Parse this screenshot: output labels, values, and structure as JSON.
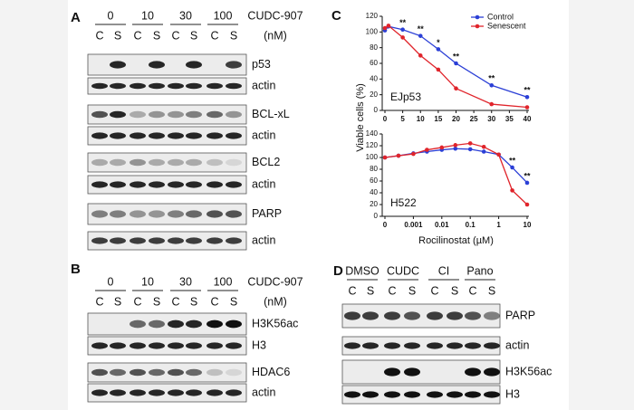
{
  "panels": {
    "A": {
      "label": "A",
      "treatment": "CUDC-907",
      "unit": "(nM)",
      "doses": [
        "0",
        "10",
        "30",
        "100"
      ],
      "lanes": [
        "C",
        "S",
        "C",
        "S",
        "C",
        "S",
        "C",
        "S"
      ],
      "blots": [
        "p53",
        "actin",
        "BCL-xL",
        "actin",
        "BCL2",
        "actin",
        "PARP",
        "actin"
      ]
    },
    "B": {
      "label": "B",
      "treatment": "CUDC-907",
      "unit": "(nM)",
      "doses": [
        "0",
        "10",
        "30",
        "100"
      ],
      "lanes": [
        "C",
        "S",
        "C",
        "S",
        "C",
        "S",
        "C",
        "S"
      ],
      "blots": [
        "H3K56ac",
        "H3",
        "HDAC6",
        "actin"
      ]
    },
    "C": {
      "label": "C"
    },
    "D": {
      "label": "D",
      "groups": [
        "DMSO",
        "CUDC",
        "CI",
        "Pano"
      ],
      "lanes": [
        "C",
        "S",
        "C",
        "S",
        "C",
        "S",
        "C",
        "S"
      ],
      "blots": [
        "PARP",
        "actin",
        "H3K56ac",
        "H3"
      ]
    }
  },
  "chart_data": [
    {
      "type": "line",
      "annotation": "EJp53",
      "y_label": "Viable cells (%)",
      "x": [
        0,
        1,
        5,
        10,
        15,
        20,
        30,
        40
      ],
      "series": [
        {
          "name": "Control",
          "color": "#2b3fd6",
          "values": [
            102,
            107,
            103,
            95,
            78,
            60,
            32,
            17
          ]
        },
        {
          "name": "Senescent",
          "color": "#e0242b",
          "values": [
            105,
            108,
            93,
            70,
            52,
            28,
            8,
            4
          ]
        }
      ],
      "xlim": [
        0,
        40
      ],
      "xticks": [
        0,
        5,
        10,
        15,
        20,
        25,
        30,
        35,
        40
      ],
      "ylim": [
        0,
        120
      ],
      "yticks": [
        0,
        20,
        40,
        60,
        80,
        100,
        120
      ],
      "legend": "upper right",
      "significance": {
        "x": [
          5,
          10,
          15,
          20,
          30,
          40
        ],
        "labels": [
          "**",
          "**",
          "*",
          "**",
          "**",
          "**"
        ]
      }
    },
    {
      "type": "line",
      "annotation": "H522",
      "x_label": "Rocilinostat (µM)",
      "log": true,
      "x": [
        0,
        0.0003,
        0.001,
        0.003,
        0.01,
        0.03,
        0.1,
        0.3,
        1,
        3,
        10
      ],
      "series": [
        {
          "name": "Control",
          "color": "#2b3fd6",
          "values": [
            100,
            103,
            107,
            110,
            113,
            115,
            114,
            110,
            105,
            83,
            57
          ]
        },
        {
          "name": "Senescent",
          "color": "#e0242b",
          "values": [
            100,
            103,
            106,
            113,
            117,
            121,
            124,
            118,
            105,
            44,
            20
          ]
        }
      ],
      "xlim": [
        0,
        10
      ],
      "xticks": [
        0,
        0.001,
        0.01,
        0.1,
        1,
        10
      ],
      "ylim": [
        0,
        140
      ],
      "yticks": [
        0,
        20,
        40,
        60,
        80,
        100,
        120,
        140
      ],
      "significance": {
        "x": [
          3,
          10
        ],
        "labels": [
          "**",
          "**"
        ]
      }
    }
  ]
}
